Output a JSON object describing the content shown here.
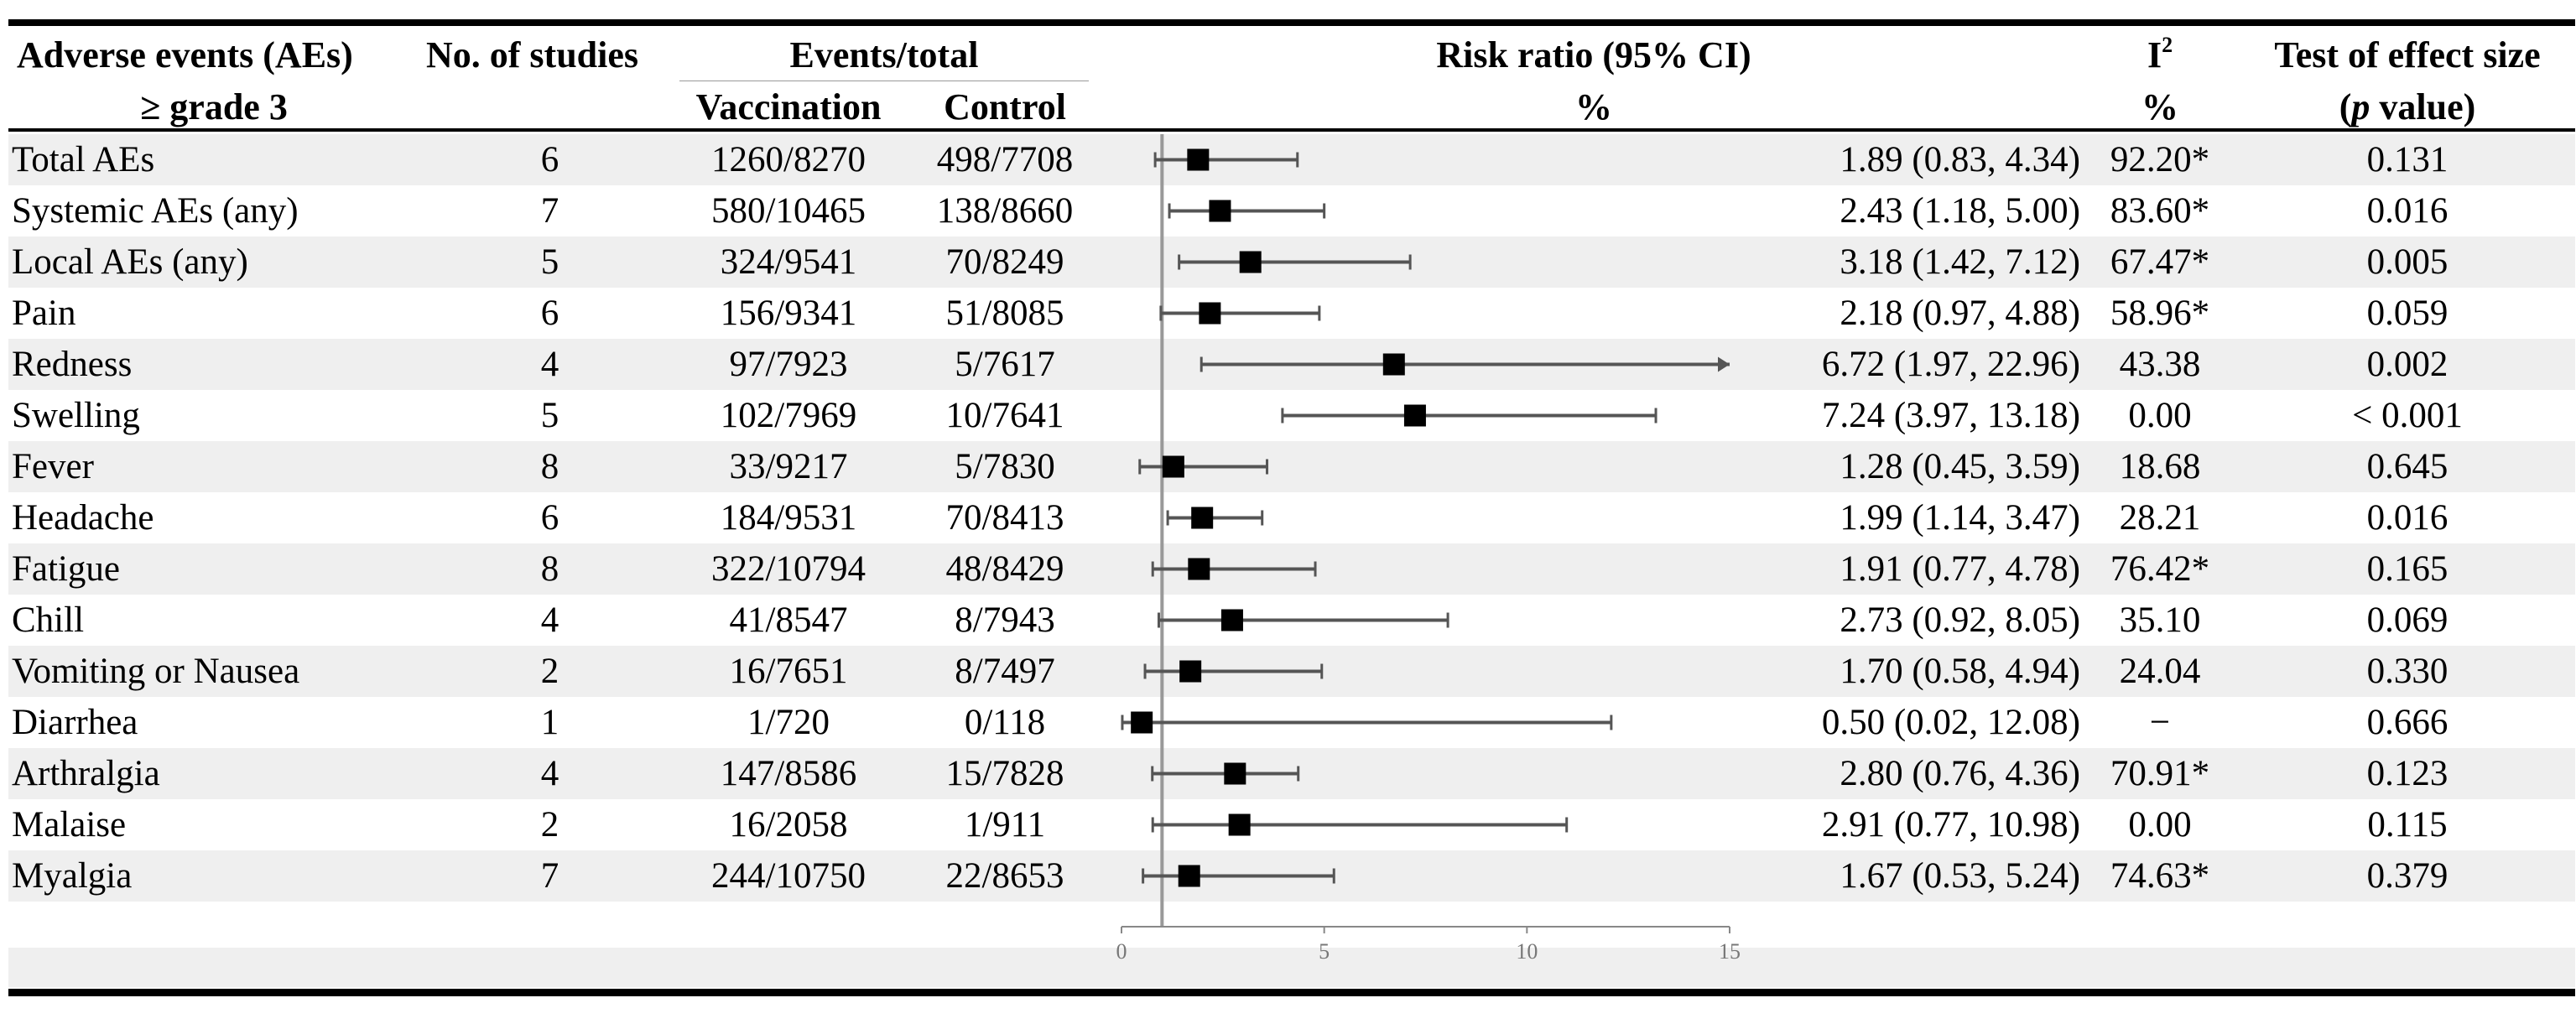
{
  "header": {
    "col_ae_line1": "Adverse events (AEs)",
    "col_ae_line2": "≥ grade 3",
    "col_studies": "No. of studies",
    "col_events": "Events/total",
    "col_vacc": "Vaccination",
    "col_ctrl": "Control",
    "col_rr": "Risk ratio (95% CI)",
    "col_rr_unit": "%",
    "col_i2_base": "I",
    "col_i2_sup": "2",
    "col_i2_unit": "%",
    "col_test_line1": "Test of effect size",
    "col_test_p": "p",
    "col_test_open": "(",
    "col_test_rest": " value)"
  },
  "rows": [
    {
      "ae": "Total AEs",
      "studies": "6",
      "vacc": "1260/8270",
      "ctrl": "498/7708",
      "rr": "1.89 (0.83, 4.34)",
      "i2": "92.20*",
      "p": "0.131"
    },
    {
      "ae": "Systemic AEs (any)",
      "studies": "7",
      "vacc": "580/10465",
      "ctrl": "138/8660",
      "rr": "2.43 (1.18, 5.00)",
      "i2": "83.60*",
      "p": "0.016"
    },
    {
      "ae": "Local AEs (any)",
      "studies": "5",
      "vacc": "324/9541",
      "ctrl": "70/8249",
      "rr": "3.18 (1.42, 7.12)",
      "i2": "67.47*",
      "p": "0.005"
    },
    {
      "ae": "Pain",
      "studies": "6",
      "vacc": "156/9341",
      "ctrl": "51/8085",
      "rr": "2.18 (0.97, 4.88)",
      "i2": "58.96*",
      "p": "0.059"
    },
    {
      "ae": "Redness",
      "studies": "4",
      "vacc": "97/7923",
      "ctrl": "5/7617",
      "rr": "6.72 (1.97, 22.96)",
      "i2": "43.38",
      "p": "0.002"
    },
    {
      "ae": "Swelling",
      "studies": "5",
      "vacc": "102/7969",
      "ctrl": "10/7641",
      "rr": "7.24 (3.97, 13.18)",
      "i2": "0.00",
      "p": "< 0.001"
    },
    {
      "ae": "Fever",
      "studies": "8",
      "vacc": "33/9217",
      "ctrl": "5/7830",
      "rr": "1.28 (0.45, 3.59)",
      "i2": "18.68",
      "p": "0.645"
    },
    {
      "ae": "Headache",
      "studies": "6",
      "vacc": "184/9531",
      "ctrl": "70/8413",
      "rr": "1.99 (1.14, 3.47)",
      "i2": "28.21",
      "p": "0.016"
    },
    {
      "ae": "Fatigue",
      "studies": "8",
      "vacc": "322/10794",
      "ctrl": "48/8429",
      "rr": "1.91 (0.77, 4.78)",
      "i2": "76.42*",
      "p": "0.165"
    },
    {
      "ae": "Chill",
      "studies": "4",
      "vacc": "41/8547",
      "ctrl": "8/7943",
      "rr": "2.73 (0.92, 8.05)",
      "i2": "35.10",
      "p": "0.069"
    },
    {
      "ae": "Vomiting or Nausea",
      "studies": "2",
      "vacc": "16/7651",
      "ctrl": "8/7497",
      "rr": "1.70 (0.58, 4.94)",
      "i2": "24.04",
      "p": "0.330"
    },
    {
      "ae": "Diarrhea",
      "studies": "1",
      "vacc": "1/720",
      "ctrl": "0/118",
      "rr": "0.50 (0.02, 12.08)",
      "i2": "−",
      "p": "0.666"
    },
    {
      "ae": "Arthralgia",
      "studies": "4",
      "vacc": "147/8586",
      "ctrl": "15/7828",
      "rr": "2.80 (0.76, 4.36)",
      "i2": "70.91*",
      "p": "0.123"
    },
    {
      "ae": "Malaise",
      "studies": "2",
      "vacc": "16/2058",
      "ctrl": "1/911",
      "rr": "2.91 (0.77, 10.98)",
      "i2": "0.00",
      "p": "0.115"
    },
    {
      "ae": "Myalgia",
      "studies": "7",
      "vacc": "244/10750",
      "ctrl": "22/8653",
      "rr": "1.67 (0.53, 5.24)",
      "i2": "74.63*",
      "p": "0.379"
    }
  ],
  "chart_data": {
    "type": "forest",
    "categories": [
      "Total AEs",
      "Systemic AEs (any)",
      "Local AEs (any)",
      "Pain",
      "Redness",
      "Swelling",
      "Fever",
      "Headache",
      "Fatigue",
      "Chill",
      "Vomiting or Nausea",
      "Diarrhea",
      "Arthralgia",
      "Malaise",
      "Myalgia"
    ],
    "estimate": [
      1.89,
      2.43,
      3.18,
      2.18,
      6.72,
      7.24,
      1.28,
      1.99,
      1.91,
      2.73,
      1.7,
      0.5,
      2.8,
      2.91,
      1.67
    ],
    "lower": [
      0.83,
      1.18,
      1.42,
      0.97,
      1.97,
      3.97,
      0.45,
      1.14,
      0.77,
      0.92,
      0.58,
      0.02,
      0.76,
      0.77,
      0.53
    ],
    "upper": [
      4.34,
      5.0,
      7.12,
      4.88,
      22.96,
      13.18,
      3.59,
      3.47,
      4.78,
      8.05,
      4.94,
      12.08,
      4.36,
      10.98,
      5.24
    ],
    "xlim": [
      0,
      15
    ],
    "xticks": [
      0,
      5,
      10,
      15
    ],
    "reference_line": 1,
    "xlabel": "Risk ratio (95% CI)",
    "colors": {
      "marker": "#000000",
      "whisker": "#555555",
      "axis": "#888888",
      "ref_line": "#999999",
      "band": "#efefef"
    }
  }
}
